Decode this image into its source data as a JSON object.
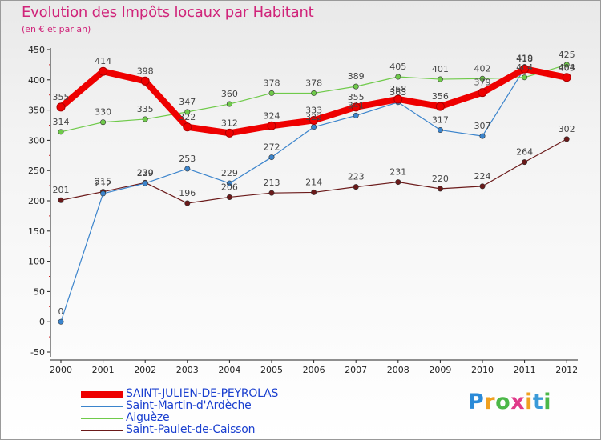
{
  "chart_data": {
    "type": "line",
    "title": "Evolution des Impôts locaux par Habitant",
    "subtitle": "(en € et par an)",
    "categories": [
      "2000",
      "2001",
      "2002",
      "2003",
      "2004",
      "2005",
      "2006",
      "2007",
      "2008",
      "2009",
      "2010",
      "2011",
      "2012"
    ],
    "ylim": [
      -50,
      450
    ],
    "yticks": [
      "450",
      "400",
      "350",
      "300",
      "250",
      "200",
      "150",
      "100",
      "50",
      "0",
      "-50"
    ],
    "grid": false,
    "series": [
      {
        "name": "Saint-Paulet-de-Caisson",
        "color": "#6b1a1a",
        "values": [
          201,
          215,
          230,
          196,
          206,
          213,
          214,
          223,
          231,
          220,
          224,
          264,
          302
        ],
        "labels": [
          "201",
          "215",
          "230",
          "196",
          "206",
          "213",
          "214",
          "223",
          "231",
          "220",
          "224",
          "264",
          "302"
        ]
      },
      {
        "name": "Saint-Martin-d'Ardèche",
        "color": "#3b84cc",
        "values": [
          0,
          212,
          229,
          253,
          229,
          272,
          322,
          341,
          363,
          317,
          307,
          419,
          403
        ],
        "labels": [
          "0",
          "212",
          "229",
          "253",
          "229",
          "272",
          "322",
          "341",
          "363",
          "317",
          "307",
          "419",
          "403"
        ]
      },
      {
        "name": "Aiguèze",
        "color": "#6fca4a",
        "values": [
          314,
          330,
          335,
          347,
          360,
          378,
          378,
          389,
          405,
          401,
          402,
          404,
          425
        ],
        "labels": [
          "314",
          "330",
          "335",
          "347",
          "360",
          "378",
          "378",
          "389",
          "405",
          "401",
          "402",
          "404",
          "425"
        ]
      },
      {
        "name": "SAINT-JULIEN-DE-PEYROLAS",
        "color": "#ee0000",
        "values": [
          355,
          414,
          398,
          322,
          312,
          324,
          333,
          355,
          368,
          356,
          379,
          418,
          404
        ],
        "labels": [
          "355",
          "414",
          "398",
          "322",
          "312",
          "324",
          "333",
          "355",
          "368",
          "356",
          "379",
          "418",
          "404"
        ]
      }
    ]
  },
  "legend": {
    "items": [
      {
        "label": "SAINT-JULIEN-DE-PEYROLAS",
        "color": "#ee0000"
      },
      {
        "label": "Saint-Martin-d'Ardèche",
        "color": "#3b84cc"
      },
      {
        "label": "Aiguèze",
        "color": "#6fca4a"
      },
      {
        "label": "Saint-Paulet-de-Caisson",
        "color": "#6b1a1a"
      }
    ]
  },
  "brand": {
    "letters": [
      "P",
      "r",
      "o",
      "x",
      "i",
      "t",
      "i"
    ],
    "colors": [
      "#2a8ad8",
      "#f0a020",
      "#4cb848",
      "#e03a8a",
      "#f0a020",
      "#3a9ad8",
      "#4cb848"
    ]
  }
}
